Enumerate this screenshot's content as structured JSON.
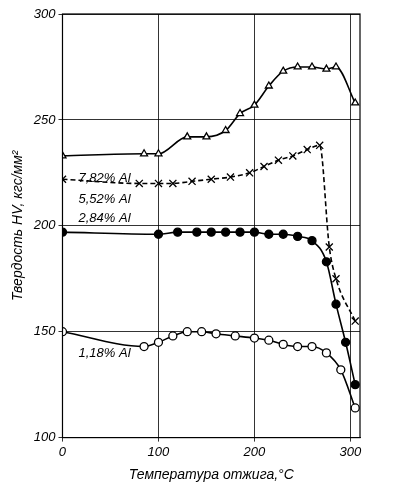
{
  "chart_data": {
    "type": "line",
    "x_label": "Температура отжига,°С",
    "y_label": "Твердость HV, кгс/мм²",
    "xlim": [
      0,
      310
    ],
    "xticks": [
      0,
      100,
      200,
      300
    ],
    "ylim": [
      100,
      300
    ],
    "yticks": [
      100,
      150,
      200,
      250,
      300
    ],
    "grid": true,
    "series": [
      {
        "name": "7,82% Al",
        "color": "#000000",
        "marker": "triangle",
        "line_style": "solid",
        "x": [
          0,
          85,
          100,
          130,
          150,
          170,
          185,
          200,
          215,
          230,
          245,
          260,
          275,
          285,
          305
        ],
        "values": [
          233,
          234,
          234,
          242,
          242,
          245,
          253,
          257,
          266,
          273,
          275,
          275,
          274,
          275,
          258
        ]
      },
      {
        "name": "5,52% Al",
        "color": "#000000",
        "marker": "x",
        "line_style": "dashed",
        "x": [
          0,
          80,
          100,
          115,
          135,
          155,
          175,
          195,
          210,
          225,
          240,
          255,
          268,
          278,
          285,
          305
        ],
        "values": [
          222,
          220,
          220,
          220,
          221,
          222,
          223,
          225,
          228,
          231,
          233,
          236,
          238,
          190,
          175,
          155
        ]
      },
      {
        "name": "2,84% Al",
        "color": "#000000",
        "marker": "circle_filled",
        "line_style": "solid",
        "x": [
          0,
          100,
          120,
          140,
          155,
          170,
          185,
          200,
          215,
          230,
          245,
          260,
          275,
          285,
          295,
          305
        ],
        "values": [
          197,
          196,
          197,
          197,
          197,
          197,
          197,
          197,
          196,
          196,
          195,
          193,
          183,
          163,
          145,
          125
        ]
      },
      {
        "name": "1,18% Al",
        "color": "#000000",
        "marker": "circle",
        "line_style": "solid",
        "x": [
          0,
          85,
          100,
          115,
          130,
          145,
          160,
          180,
          200,
          215,
          230,
          245,
          260,
          275,
          290,
          305
        ],
        "values": [
          150,
          143,
          145,
          148,
          150,
          150,
          149,
          148,
          147,
          146,
          144,
          143,
          143,
          140,
          132,
          114
        ]
      }
    ]
  }
}
